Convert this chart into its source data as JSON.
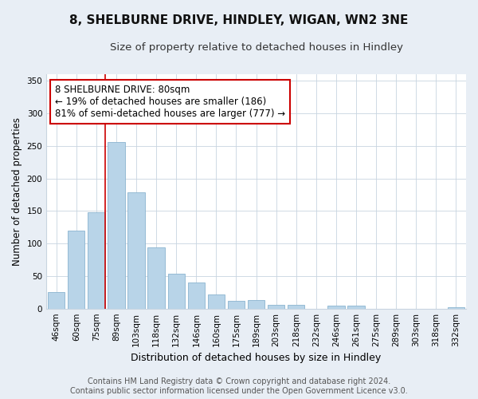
{
  "title": "8, SHELBURNE DRIVE, HINDLEY, WIGAN, WN2 3NE",
  "subtitle": "Size of property relative to detached houses in Hindley",
  "xlabel": "Distribution of detached houses by size in Hindley",
  "ylabel": "Number of detached properties",
  "bar_labels": [
    "46sqm",
    "60sqm",
    "75sqm",
    "89sqm",
    "103sqm",
    "118sqm",
    "132sqm",
    "146sqm",
    "160sqm",
    "175sqm",
    "189sqm",
    "203sqm",
    "218sqm",
    "232sqm",
    "246sqm",
    "261sqm",
    "275sqm",
    "289sqm",
    "303sqm",
    "318sqm",
    "332sqm"
  ],
  "bar_values": [
    25,
    120,
    148,
    256,
    178,
    94,
    54,
    40,
    22,
    12,
    13,
    6,
    6,
    0,
    5,
    5,
    0,
    0,
    0,
    0,
    2
  ],
  "bar_color": "#b8d4e8",
  "bar_edge_color": "#8ab4d0",
  "vline_x_idx": 2,
  "vline_color": "#cc0000",
  "annotation_text": "8 SHELBURNE DRIVE: 80sqm\n← 19% of detached houses are smaller (186)\n81% of semi-detached houses are larger (777) →",
  "annotation_box_color": "#ffffff",
  "annotation_box_edge": "#cc0000",
  "ylim": [
    0,
    360
  ],
  "yticks": [
    0,
    50,
    100,
    150,
    200,
    250,
    300,
    350
  ],
  "footer_line1": "Contains HM Land Registry data © Crown copyright and database right 2024.",
  "footer_line2": "Contains public sector information licensed under the Open Government Licence v3.0.",
  "bg_color": "#e8eef5",
  "plot_bg_color": "#ffffff",
  "title_fontsize": 11,
  "subtitle_fontsize": 9.5,
  "xlabel_fontsize": 9,
  "ylabel_fontsize": 8.5,
  "tick_fontsize": 7.5,
  "annotation_fontsize": 8.5,
  "footer_fontsize": 7
}
